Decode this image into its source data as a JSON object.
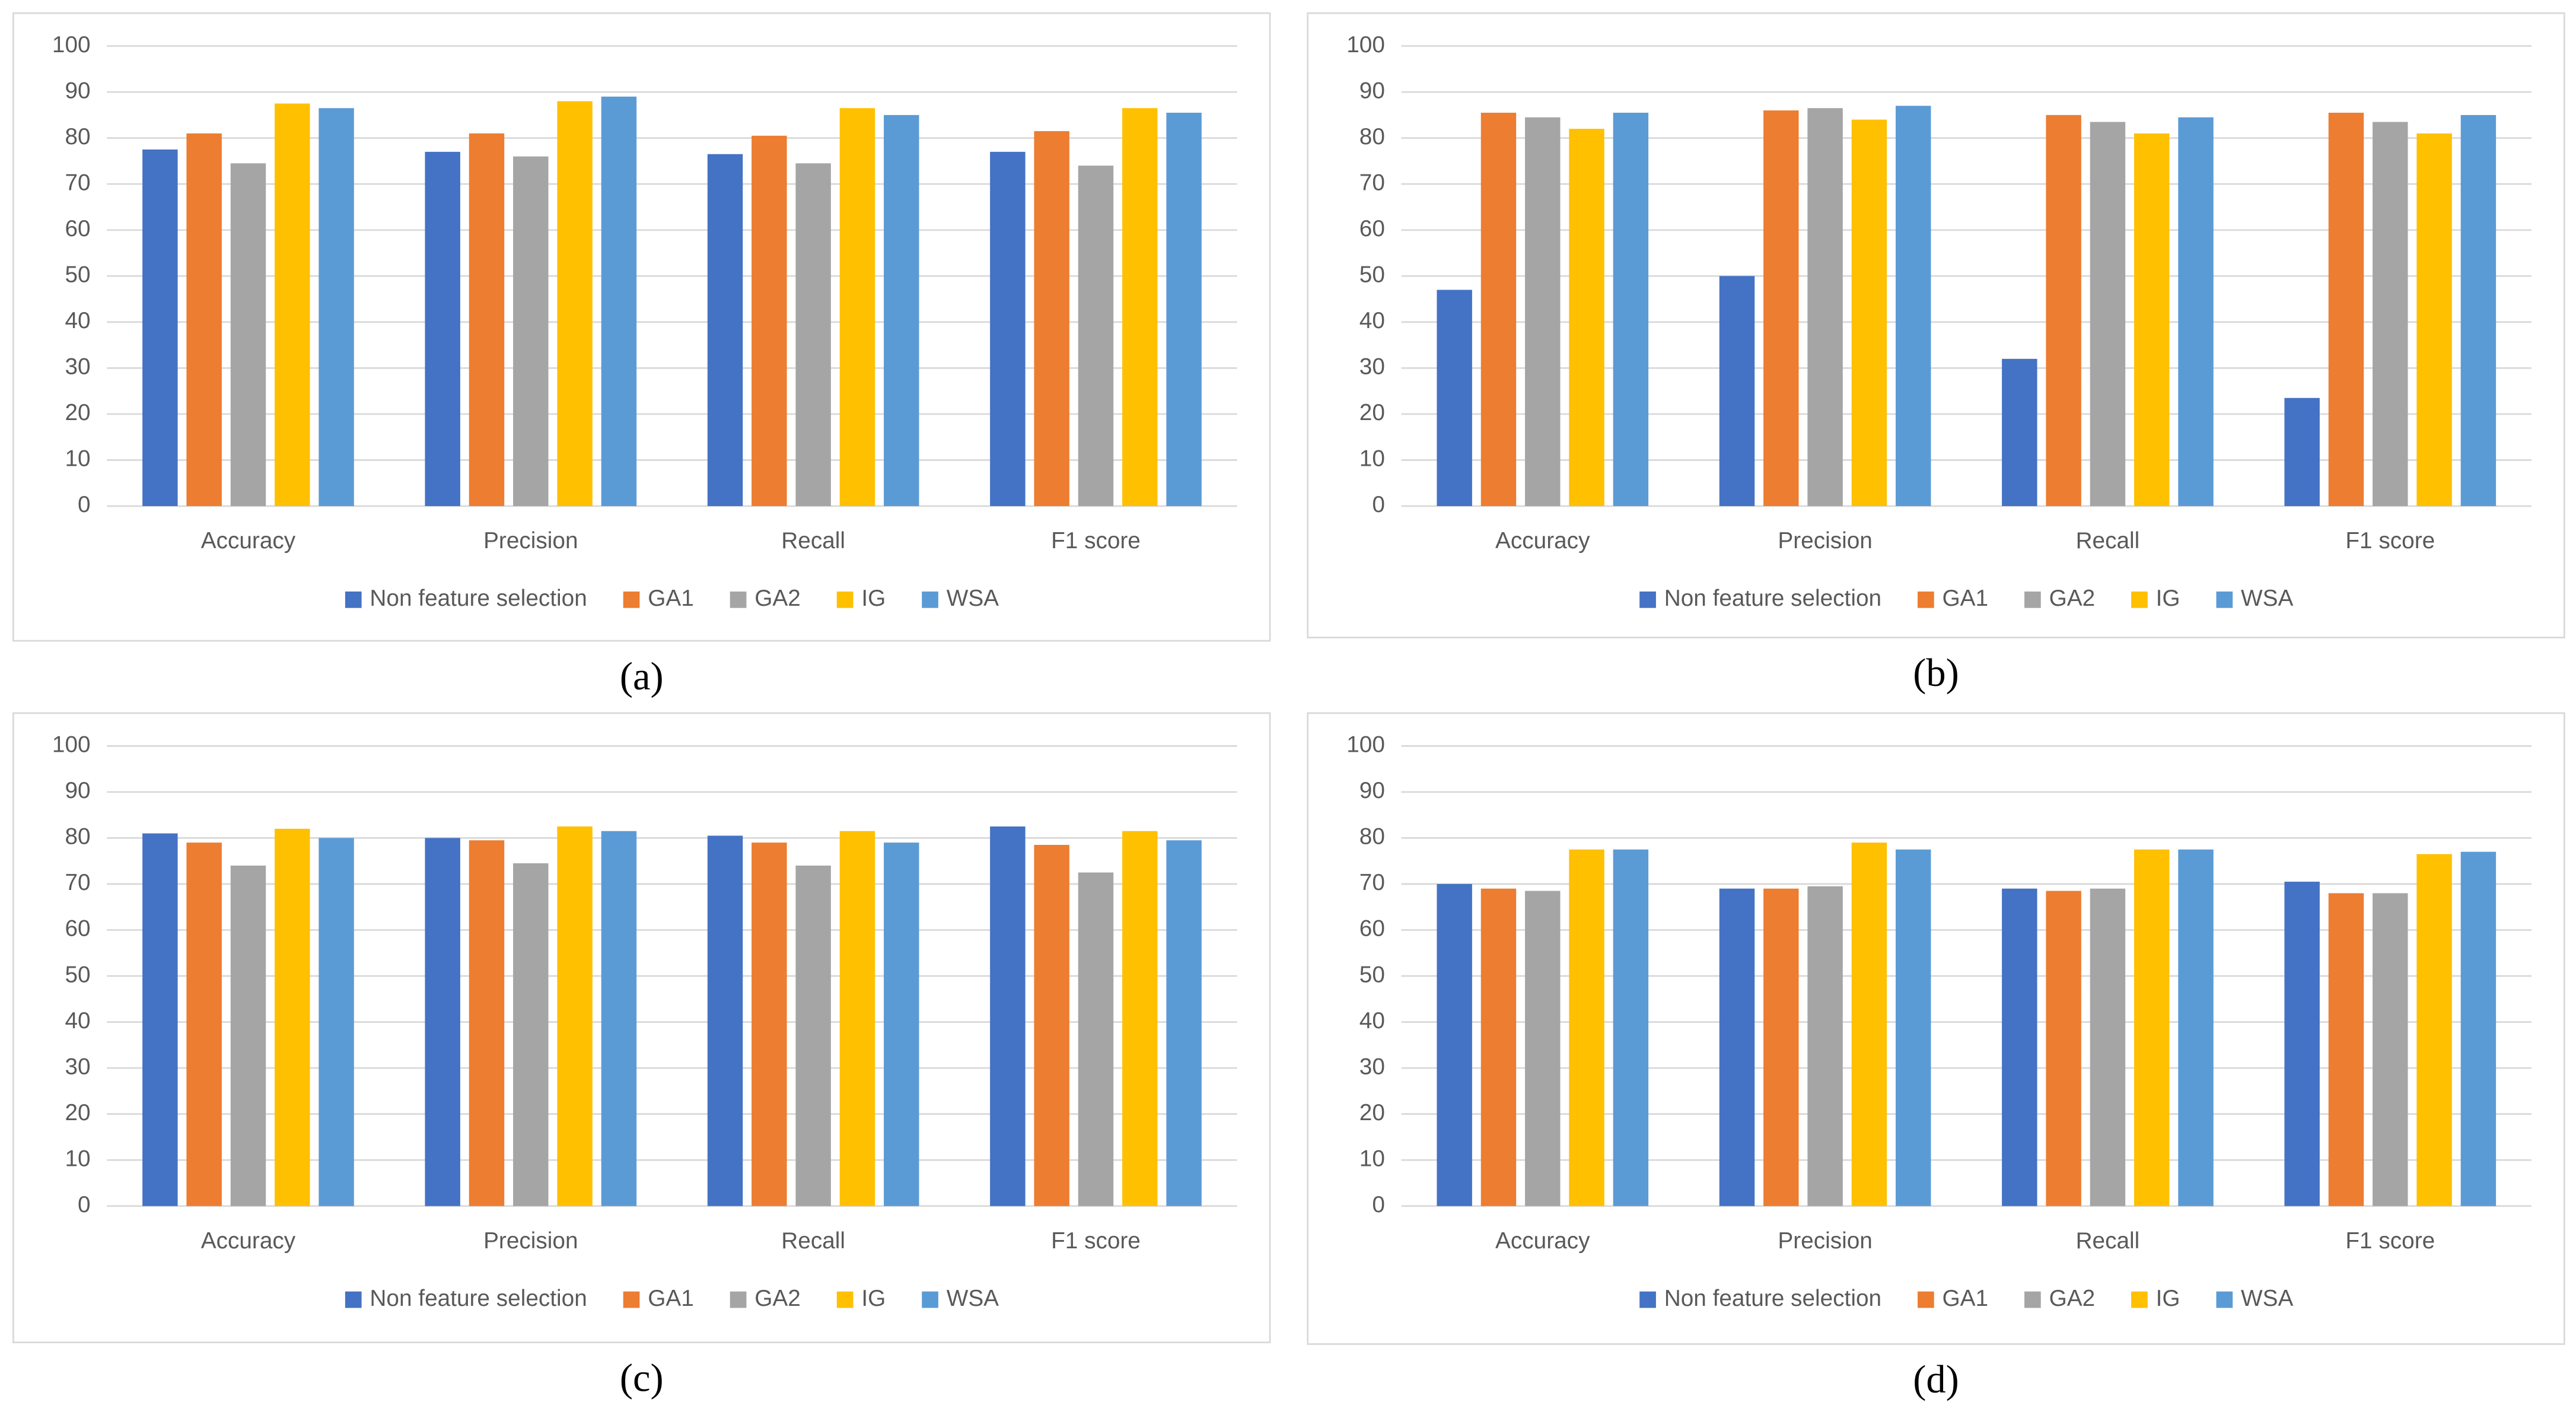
{
  "chart_data": [
    {
      "type": "bar",
      "panel_label": "(a)",
      "categories": [
        "Accuracy",
        "Precision",
        "Recall",
        "F1 score"
      ],
      "series": [
        {
          "name": "Non feature selection",
          "color": "#4472c4",
          "values": [
            77.5,
            77,
            76.5,
            77
          ]
        },
        {
          "name": "GA1",
          "color": "#ed7d31",
          "values": [
            81,
            81,
            80.5,
            81.5
          ]
        },
        {
          "name": "GA2",
          "color": "#a5a5a5",
          "values": [
            74.5,
            76,
            74.5,
            74
          ]
        },
        {
          "name": "IG",
          "color": "#ffc000",
          "values": [
            87.5,
            88,
            86.5,
            86.5
          ]
        },
        {
          "name": "WSA",
          "color": "#5b9bd5",
          "values": [
            86.5,
            89,
            85,
            85.5
          ]
        }
      ],
      "ylim": [
        0,
        100
      ],
      "yticks": [
        0,
        10,
        20,
        30,
        40,
        50,
        60,
        70,
        80,
        90,
        100
      ],
      "grid": true,
      "legend": "bottom"
    },
    {
      "type": "bar",
      "panel_label": "(b)",
      "categories": [
        "Accuracy",
        "Precision",
        "Recall",
        "F1 score"
      ],
      "series": [
        {
          "name": "Non feature selection",
          "color": "#4472c4",
          "values": [
            47,
            50,
            32,
            23.5
          ]
        },
        {
          "name": "GA1",
          "color": "#ed7d31",
          "values": [
            85.5,
            86,
            85,
            85.5
          ]
        },
        {
          "name": "GA2",
          "color": "#a5a5a5",
          "values": [
            84.5,
            86.5,
            83.5,
            83.5
          ]
        },
        {
          "name": "IG",
          "color": "#ffc000",
          "values": [
            82,
            84,
            81,
            81
          ]
        },
        {
          "name": "WSA",
          "color": "#5b9bd5",
          "values": [
            85.5,
            87,
            84.5,
            85
          ]
        }
      ],
      "ylim": [
        0,
        100
      ],
      "yticks": [
        0,
        10,
        20,
        30,
        40,
        50,
        60,
        70,
        80,
        90,
        100
      ],
      "grid": true,
      "legend": "bottom"
    },
    {
      "type": "bar",
      "panel_label": "(c)",
      "categories": [
        "Accuracy",
        "Precision",
        "Recall",
        "F1 score"
      ],
      "series": [
        {
          "name": "Non feature selection",
          "color": "#4472c4",
          "values": [
            81,
            80,
            80.5,
            82.5
          ]
        },
        {
          "name": "GA1",
          "color": "#ed7d31",
          "values": [
            79,
            79.5,
            79,
            78.5
          ]
        },
        {
          "name": "GA2",
          "color": "#a5a5a5",
          "values": [
            74,
            74.5,
            74,
            72.5
          ]
        },
        {
          "name": "IG",
          "color": "#ffc000",
          "values": [
            82,
            82.5,
            81.5,
            81.5
          ]
        },
        {
          "name": "WSA",
          "color": "#5b9bd5",
          "values": [
            80,
            81.5,
            79,
            79.5
          ]
        }
      ],
      "ylim": [
        0,
        100
      ],
      "yticks": [
        0,
        10,
        20,
        30,
        40,
        50,
        60,
        70,
        80,
        90,
        100
      ],
      "grid": true,
      "legend": "bottom"
    },
    {
      "type": "bar",
      "panel_label": "(d)",
      "categories": [
        "Accuracy",
        "Precision",
        "Recall",
        "F1 score"
      ],
      "series": [
        {
          "name": "Non feature selection",
          "color": "#4472c4",
          "values": [
            70,
            69,
            69,
            70.5
          ]
        },
        {
          "name": "GA1",
          "color": "#ed7d31",
          "values": [
            69,
            69,
            68.5,
            68
          ]
        },
        {
          "name": "GA2",
          "color": "#a5a5a5",
          "values": [
            68.5,
            69.5,
            69,
            68
          ]
        },
        {
          "name": "IG",
          "color": "#ffc000",
          "values": [
            77.5,
            79,
            77.5,
            76.5
          ]
        },
        {
          "name": "WSA",
          "color": "#5b9bd5",
          "values": [
            77.5,
            77.5,
            77.5,
            77
          ]
        }
      ],
      "ylim": [
        0,
        100
      ],
      "yticks": [
        0,
        10,
        20,
        30,
        40,
        50,
        60,
        70,
        80,
        90,
        100
      ],
      "grid": true,
      "legend": "bottom"
    }
  ]
}
